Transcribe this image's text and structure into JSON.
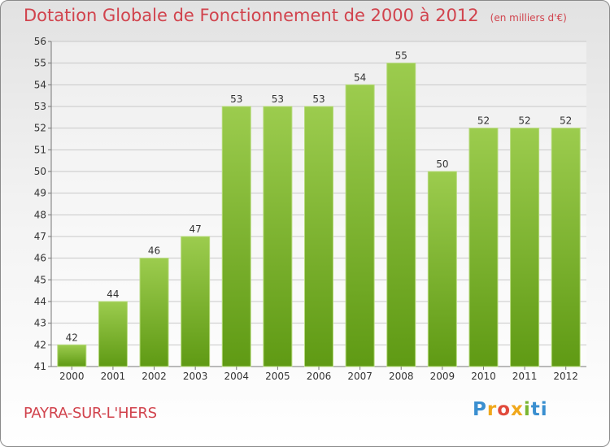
{
  "chart_data": {
    "type": "bar",
    "title": "Dotation Globale de Fonctionnement de 2000 à 2012",
    "subtitle": "(en milliers d'€)",
    "categories": [
      "2000",
      "2001",
      "2002",
      "2003",
      "2004",
      "2005",
      "2006",
      "2007",
      "2008",
      "2009",
      "2010",
      "2011",
      "2012"
    ],
    "values": [
      42,
      44,
      46,
      47,
      53,
      53,
      53,
      54,
      55,
      50,
      52,
      52,
      52
    ],
    "ylim": [
      41,
      56
    ],
    "yticks": [
      41,
      42,
      43,
      44,
      45,
      46,
      47,
      48,
      49,
      50,
      51,
      52,
      53,
      54,
      55,
      56
    ],
    "grid": true,
    "bar_color_top": "#9ccc4e",
    "bar_color_bottom": "#5f9a14"
  },
  "footer": {
    "place": "PAYRA-SUR-L'HERS",
    "logo": "Proxiti"
  },
  "colors": {
    "title": "#d1434d",
    "grid": "#c8c8c8"
  }
}
